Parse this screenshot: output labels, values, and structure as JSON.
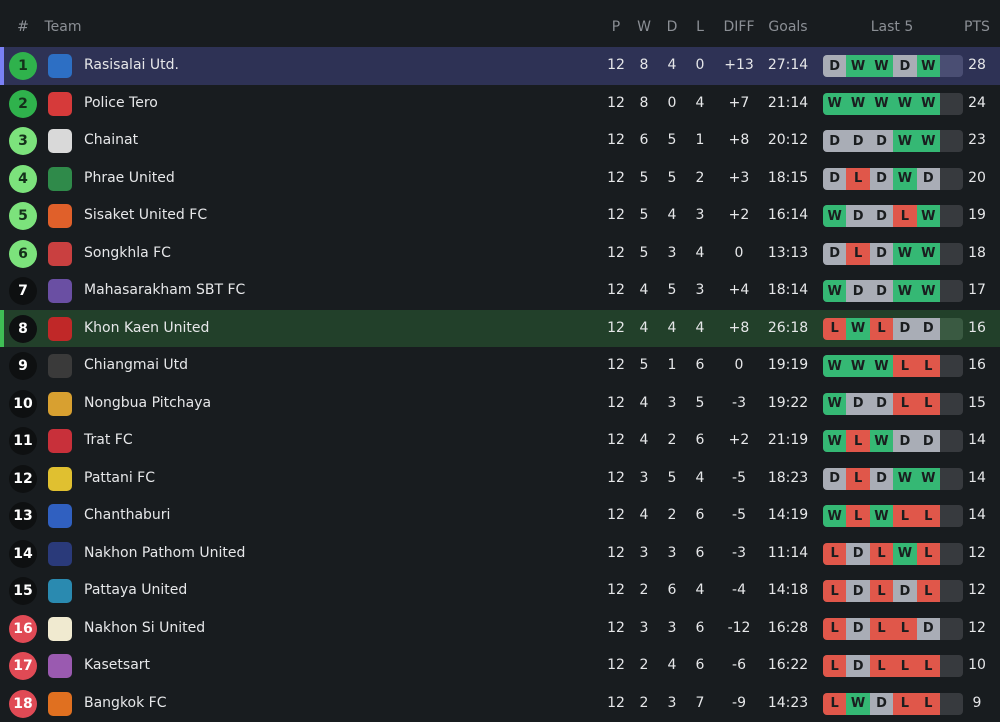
{
  "header": {
    "rank": "#",
    "team": "Team",
    "p": "P",
    "w": "W",
    "d": "D",
    "l": "L",
    "diff": "DIFF",
    "goals": "Goals",
    "last5": "Last 5",
    "pts": "PTS"
  },
  "colors": {
    "W": "#35b874",
    "D": "#a9adb6",
    "L": "#e0574a",
    "promotion": "#2fb24c",
    "playoff": "#7ce27c",
    "neutral": "#0e1011",
    "relegation": "#e04a55"
  },
  "rows": [
    {
      "rank": "1",
      "team": "Rasisalai Utd.",
      "p": "12",
      "w": "8",
      "d": "4",
      "l": "0",
      "diff": "+13",
      "goals": "27:14",
      "form": [
        "D",
        "W",
        "W",
        "D",
        "W"
      ],
      "pts": "28",
      "zone": "promotion",
      "highlight": "top",
      "logo": "#2d6fc4"
    },
    {
      "rank": "2",
      "team": "Police Tero",
      "p": "12",
      "w": "8",
      "d": "0",
      "l": "4",
      "diff": "+7",
      "goals": "21:14",
      "form": [
        "W",
        "W",
        "W",
        "W",
        "W"
      ],
      "pts": "24",
      "zone": "promotion",
      "logo": "#d63a3a"
    },
    {
      "rank": "3",
      "team": "Chainat",
      "p": "12",
      "w": "6",
      "d": "5",
      "l": "1",
      "diff": "+8",
      "goals": "20:12",
      "form": [
        "D",
        "D",
        "D",
        "W",
        "W"
      ],
      "pts": "23",
      "zone": "playoff",
      "logo": "#d9d9d9"
    },
    {
      "rank": "4",
      "team": "Phrae United",
      "p": "12",
      "w": "5",
      "d": "5",
      "l": "2",
      "diff": "+3",
      "goals": "18:15",
      "form": [
        "D",
        "L",
        "D",
        "W",
        "D"
      ],
      "pts": "20",
      "zone": "playoff",
      "logo": "#2f8a4a"
    },
    {
      "rank": "5",
      "team": "Sisaket United FC",
      "p": "12",
      "w": "5",
      "d": "4",
      "l": "3",
      "diff": "+2",
      "goals": "16:14",
      "form": [
        "W",
        "D",
        "D",
        "L",
        "W"
      ],
      "pts": "19",
      "zone": "playoff",
      "logo": "#e0602a"
    },
    {
      "rank": "6",
      "team": "Songkhla FC",
      "p": "12",
      "w": "5",
      "d": "3",
      "l": "4",
      "diff": "0",
      "goals": "13:13",
      "form": [
        "D",
        "L",
        "D",
        "W",
        "W"
      ],
      "pts": "18",
      "zone": "playoff",
      "logo": "#c94040"
    },
    {
      "rank": "7",
      "team": "Mahasarakham SBT FC",
      "p": "12",
      "w": "4",
      "d": "5",
      "l": "3",
      "diff": "+4",
      "goals": "18:14",
      "form": [
        "W",
        "D",
        "D",
        "W",
        "W"
      ],
      "pts": "17",
      "zone": "neutral",
      "logo": "#6a4fa3"
    },
    {
      "rank": "8",
      "team": "Khon Kaen United",
      "p": "12",
      "w": "4",
      "d": "4",
      "l": "4",
      "diff": "+8",
      "goals": "26:18",
      "form": [
        "L",
        "W",
        "L",
        "D",
        "D"
      ],
      "pts": "16",
      "zone": "neutral",
      "highlight": "team",
      "logo": "#c02828"
    },
    {
      "rank": "9",
      "team": "Chiangmai Utd",
      "p": "12",
      "w": "5",
      "d": "1",
      "l": "6",
      "diff": "0",
      "goals": "19:19",
      "form": [
        "W",
        "W",
        "W",
        "L",
        "L"
      ],
      "pts": "16",
      "zone": "neutral",
      "logo": "#3a3a3a"
    },
    {
      "rank": "10",
      "team": "Nongbua Pitchaya",
      "p": "12",
      "w": "4",
      "d": "3",
      "l": "5",
      "diff": "-3",
      "goals": "19:22",
      "form": [
        "W",
        "D",
        "D",
        "L",
        "L"
      ],
      "pts": "15",
      "zone": "neutral",
      "logo": "#d8a030"
    },
    {
      "rank": "11",
      "team": "Trat FC",
      "p": "12",
      "w": "4",
      "d": "2",
      "l": "6",
      "diff": "+2",
      "goals": "21:19",
      "form": [
        "W",
        "L",
        "W",
        "D",
        "D"
      ],
      "pts": "14",
      "zone": "neutral",
      "logo": "#c8303a"
    },
    {
      "rank": "12",
      "team": "Pattani FC",
      "p": "12",
      "w": "3",
      "d": "5",
      "l": "4",
      "diff": "-5",
      "goals": "18:23",
      "form": [
        "D",
        "L",
        "D",
        "W",
        "W"
      ],
      "pts": "14",
      "zone": "neutral",
      "logo": "#e0c030"
    },
    {
      "rank": "13",
      "team": "Chanthaburi",
      "p": "12",
      "w": "4",
      "d": "2",
      "l": "6",
      "diff": "-5",
      "goals": "14:19",
      "form": [
        "W",
        "L",
        "W",
        "L",
        "L"
      ],
      "pts": "14",
      "zone": "neutral",
      "logo": "#3060c0"
    },
    {
      "rank": "14",
      "team": "Nakhon Pathom United",
      "p": "12",
      "w": "3",
      "d": "3",
      "l": "6",
      "diff": "-3",
      "goals": "11:14",
      "form": [
        "L",
        "D",
        "L",
        "W",
        "L"
      ],
      "pts": "12",
      "zone": "neutral",
      "logo": "#2a3a7a"
    },
    {
      "rank": "15",
      "team": "Pattaya United",
      "p": "12",
      "w": "2",
      "d": "6",
      "l": "4",
      "diff": "-4",
      "goals": "14:18",
      "form": [
        "L",
        "D",
        "L",
        "D",
        "L"
      ],
      "pts": "12",
      "zone": "neutral",
      "logo": "#2a8ab0"
    },
    {
      "rank": "16",
      "team": "Nakhon Si United",
      "p": "12",
      "w": "3",
      "d": "3",
      "l": "6",
      "diff": "-12",
      "goals": "16:28",
      "form": [
        "L",
        "D",
        "L",
        "L",
        "D"
      ],
      "pts": "12",
      "zone": "relegation",
      "logo": "#f0ead0"
    },
    {
      "rank": "17",
      "team": "Kasetsart",
      "p": "12",
      "w": "2",
      "d": "4",
      "l": "6",
      "diff": "-6",
      "goals": "16:22",
      "form": [
        "L",
        "D",
        "L",
        "L",
        "L"
      ],
      "pts": "10",
      "zone": "relegation",
      "logo": "#9a5ab0"
    },
    {
      "rank": "18",
      "team": "Bangkok FC",
      "p": "12",
      "w": "2",
      "d": "3",
      "l": "7",
      "diff": "-9",
      "goals": "14:23",
      "form": [
        "L",
        "W",
        "D",
        "L",
        "L"
      ],
      "pts": "9",
      "zone": "relegation",
      "logo": "#e07020"
    }
  ]
}
